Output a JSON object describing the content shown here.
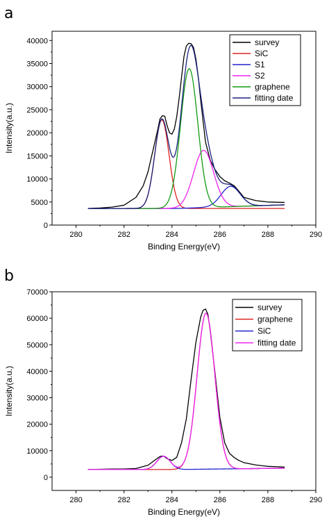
{
  "chart_data": [
    {
      "panel": "a",
      "type": "line",
      "title": "",
      "xlabel": "Binding Energy(eV)",
      "ylabel": "Intensity(a.u.)",
      "xlim": [
        279,
        290
      ],
      "ylim": [
        0,
        42000
      ],
      "xticks": [
        280,
        282,
        284,
        286,
        288,
        290
      ],
      "yticks": [
        0,
        5000,
        10000,
        15000,
        20000,
        25000,
        30000,
        35000,
        40000
      ],
      "grid": false,
      "legend_position": "top-right",
      "series": [
        {
          "name": "survey",
          "color": "#000000",
          "x": [
            280.5,
            281.0,
            281.5,
            282.0,
            282.5,
            282.8,
            283.0,
            283.2,
            283.4,
            283.5,
            283.6,
            283.7,
            283.8,
            283.9,
            284.0,
            284.1,
            284.2,
            284.3,
            284.4,
            284.5,
            284.6,
            284.7,
            284.8,
            284.9,
            285.0,
            285.1,
            285.2,
            285.4,
            285.6,
            285.8,
            286.0,
            286.2,
            286.4,
            286.6,
            286.8,
            287.0,
            287.5,
            288.0,
            288.7
          ],
          "y": [
            3600,
            3700,
            3900,
            4300,
            6000,
            8500,
            11500,
            16000,
            20500,
            23000,
            23700,
            23600,
            21500,
            20000,
            19700,
            20800,
            23500,
            27500,
            32000,
            36500,
            38800,
            39400,
            39300,
            38500,
            36000,
            32000,
            27000,
            18000,
            14000,
            12000,
            10500,
            9600,
            9100,
            8500,
            7300,
            6000,
            5300,
            5000,
            4900
          ]
        },
        {
          "name": "SiC",
          "color": "#dd2222",
          "model": "gauss",
          "baseline": 3600,
          "slope": 0,
          "peaks": [
            [
              283.58,
              19200,
              0.3
            ]
          ]
        },
        {
          "name": "S1",
          "color": "#2222cc",
          "model": "gauss",
          "baseline": 3600,
          "slope": 175,
          "peaks": [
            [
              286.45,
              4400,
              0.4
            ]
          ]
        },
        {
          "name": "S2",
          "color": "#ee22ee",
          "model": "gauss",
          "baseline": 3600,
          "slope": 175,
          "peaks": [
            [
              285.32,
              12400,
              0.42
            ]
          ]
        },
        {
          "name": "graphene",
          "color": "#119911",
          "model": "gauss",
          "baseline": 3600,
          "slope": 175,
          "peaks": [
            [
              284.72,
              30200,
              0.36
            ]
          ]
        },
        {
          "name": "fitting date",
          "color": "#1a237e",
          "model": "gauss",
          "baseline": 3600,
          "slope": 175,
          "peaks": [
            [
              283.58,
              19200,
              0.3
            ],
            [
              284.72,
              30200,
              0.36
            ],
            [
              285.32,
              12400,
              0.42
            ],
            [
              286.45,
              4400,
              0.4
            ]
          ]
        }
      ]
    },
    {
      "panel": "b",
      "type": "line",
      "title": "",
      "xlabel": "Binding Energy(eV)",
      "ylabel": "Intensity(a.u.)",
      "xlim": [
        279,
        290
      ],
      "ylim": [
        -5000,
        70000
      ],
      "xticks": [
        280,
        282,
        284,
        286,
        288,
        290
      ],
      "yticks": [
        0,
        10000,
        20000,
        30000,
        40000,
        50000,
        60000,
        70000
      ],
      "grid": false,
      "legend_position": "top-right",
      "series": [
        {
          "name": "survey",
          "color": "#000000",
          "x": [
            280.5,
            281.0,
            281.5,
            282.0,
            282.5,
            283.0,
            283.3,
            283.5,
            283.6,
            283.7,
            283.8,
            284.0,
            284.2,
            284.4,
            284.6,
            284.8,
            285.0,
            285.2,
            285.3,
            285.4,
            285.5,
            285.6,
            285.8,
            286.0,
            286.2,
            286.4,
            286.6,
            286.8,
            287.0,
            287.5,
            288.0,
            288.7
          ],
          "y": [
            2900,
            3000,
            3100,
            3100,
            3300,
            4500,
            6500,
            7800,
            8000,
            7700,
            7000,
            6300,
            7500,
            13000,
            22000,
            37000,
            51000,
            60500,
            63000,
            63500,
            61500,
            55000,
            39000,
            22500,
            13000,
            9000,
            7400,
            6300,
            5500,
            4600,
            4100,
            3800
          ]
        },
        {
          "name": "graphene",
          "color": "#dd2222",
          "model": "gauss",
          "baseline": 2900,
          "slope": 110,
          "peaks": [
            [
              285.42,
              58900,
              0.37
            ]
          ]
        },
        {
          "name": "SiC",
          "color": "#2222cc",
          "model": "gauss",
          "baseline": 2900,
          "slope": 110,
          "peaks": [
            [
              283.65,
              5000,
              0.28
            ]
          ]
        },
        {
          "name": "fitting date",
          "color": "#ee22ee",
          "model": "gauss",
          "baseline": 2900,
          "slope": 110,
          "peaks": [
            [
              283.65,
              5000,
              0.28
            ],
            [
              285.42,
              58900,
              0.37
            ]
          ]
        }
      ]
    }
  ]
}
